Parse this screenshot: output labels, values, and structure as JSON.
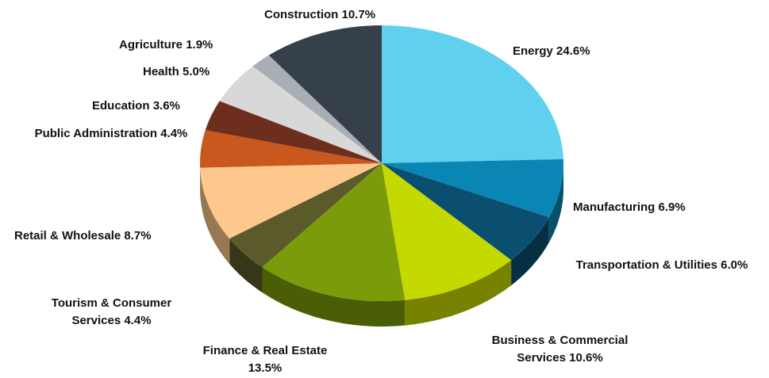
{
  "chart_data": {
    "type": "pie",
    "categories": [
      "Energy",
      "Manufacturing",
      "Transportation & Utilities",
      "Business & Commercial Services",
      "Finance & Real Estate",
      "Tourism & Consumer Services",
      "Retail & Wholesale",
      "Public Administration",
      "Education",
      "Health",
      "Agriculture",
      "Construction"
    ],
    "values": [
      24.6,
      6.9,
      6.0,
      10.6,
      13.5,
      4.4,
      8.7,
      4.4,
      3.6,
      5.0,
      1.9,
      10.7
    ],
    "value_labels": [
      "24.6%",
      "6.9%",
      "6.0%",
      "10.6%",
      "13.5%",
      "4.4%",
      "8.7%",
      "4.4%",
      "3.6%",
      "5.0%",
      "1.9%",
      "10.7%"
    ],
    "colors": [
      "#5fd0ee",
      "#0a86b4",
      "#0b4f70",
      "#c4d900",
      "#7b9c0a",
      "#5a5a2a",
      "#fcc88c",
      "#c8581e",
      "#6e2e1e",
      "#d8d8d8",
      "#a8aeb4",
      "#36404a"
    ]
  }
}
